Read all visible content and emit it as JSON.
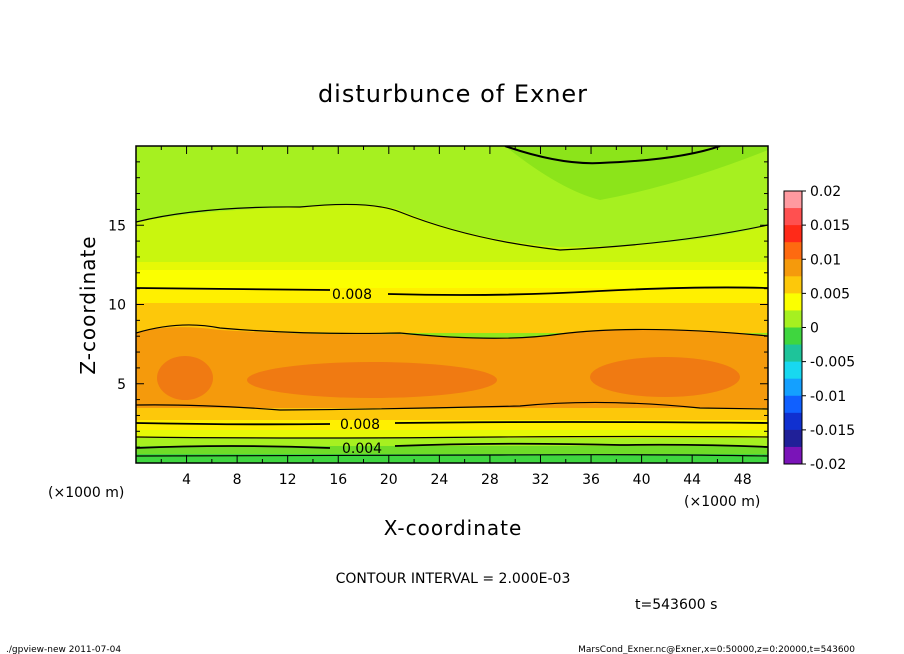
{
  "chart_data": {
    "type": "heatmap",
    "title": "disturbunce of Exner",
    "xlabel": "X-coordinate",
    "ylabel": "Z-coordinate",
    "x_unit": "(×1000 m)",
    "x_ticks": [
      4,
      8,
      12,
      16,
      20,
      24,
      28,
      32,
      36,
      40,
      44,
      48
    ],
    "y_ticks": [
      5,
      10,
      15
    ],
    "xlim": [
      0,
      50
    ],
    "ylim": [
      0,
      20
    ],
    "contour_interval": "CONTOUR INTERVAL = 2.000E-03",
    "contour_labels": [
      "0.008",
      "0.008",
      "0.004"
    ],
    "colorbar": {
      "ticks": [
        "0.02",
        "0.015",
        "0.01",
        "0.005",
        "0",
        "-0.005",
        "-0.01",
        "-0.015",
        "-0.02"
      ],
      "range": [
        -0.02,
        0.02
      ]
    },
    "time_label": "t=543600 s",
    "footer_left": "./gpview-new   2011-07-04",
    "footer_right": "MarsCond_Exner.nc@Exner,x=0:50000,z=0:20000,t=543600"
  },
  "colors": {
    "min_fill": "#3fd63f",
    "top_band": "#a6f020",
    "orange": "#f59a0c",
    "core": "#f07a12"
  }
}
